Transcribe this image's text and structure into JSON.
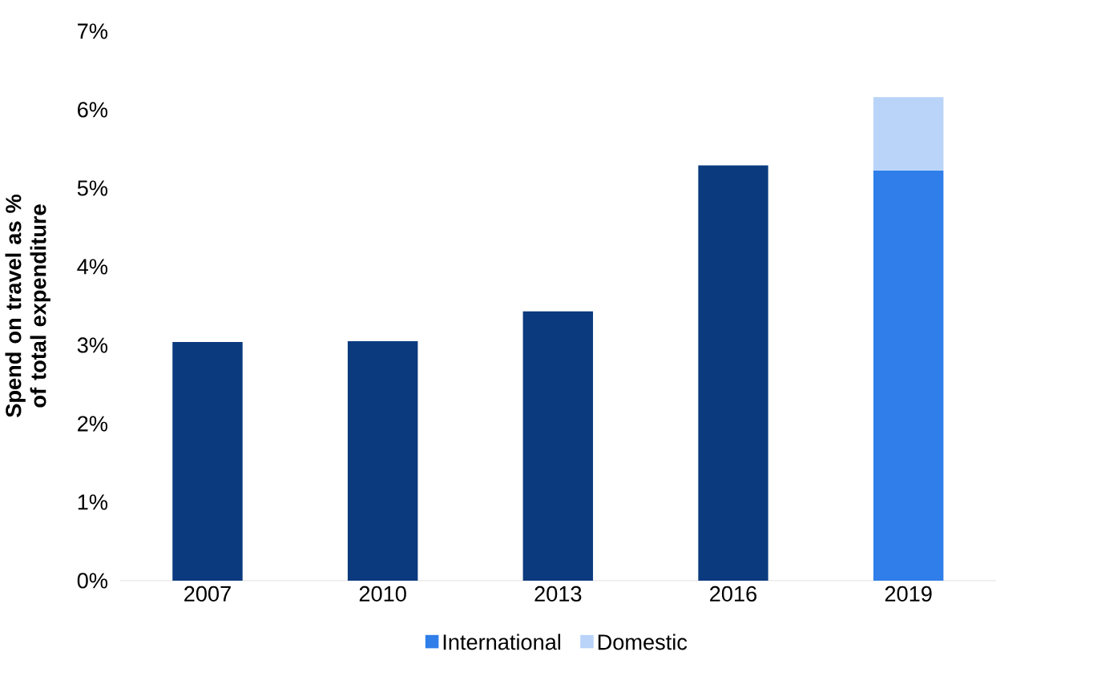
{
  "chart_data": {
    "type": "bar",
    "stacked": true,
    "ylabel": "Spend on travel as % of total expenditure",
    "categories": [
      "2007",
      "2010",
      "2013",
      "2016",
      "2019"
    ],
    "series": [
      {
        "name": "International",
        "color": "#2f7eea",
        "colors": [
          "#0b3a7e",
          "#0b3a7e",
          "#0b3a7e",
          "#0b3a7e",
          "#2f7eea"
        ],
        "values": [
          3.04,
          3.05,
          3.43,
          5.29,
          5.23
        ]
      },
      {
        "name": "Domestic",
        "color": "#b9d4f8",
        "values": [
          null,
          null,
          null,
          null,
          0.93
        ]
      }
    ],
    "ylim": [
      0,
      7
    ],
    "yticks": [
      {
        "value": 0,
        "label": "0%"
      },
      {
        "value": 1,
        "label": "1%"
      },
      {
        "value": 2,
        "label": "2%"
      },
      {
        "value": 3,
        "label": "3%"
      },
      {
        "value": 4,
        "label": "4%"
      },
      {
        "value": 5,
        "label": "5%"
      },
      {
        "value": 6,
        "label": "6%"
      },
      {
        "value": 7,
        "label": "7%"
      }
    ],
    "grid": false,
    "legend": "bottom"
  }
}
